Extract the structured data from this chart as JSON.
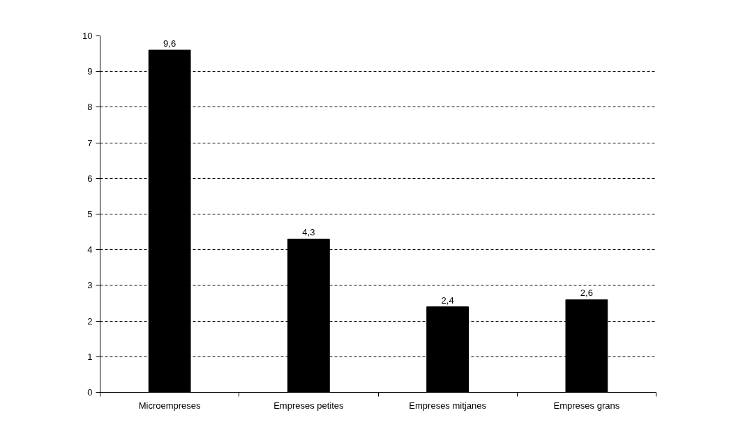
{
  "chart_data": {
    "type": "bar",
    "categories": [
      "Microempreses",
      "Empreses petites",
      "Empreses mitjanes",
      "Empreses grans"
    ],
    "values": [
      9.6,
      4.3,
      2.4,
      2.6
    ],
    "value_labels": [
      "9,6",
      "4,3",
      "2,4",
      "2,6"
    ],
    "color": "#000000",
    "ylim": [
      0,
      10
    ],
    "yticks": [
      0,
      1,
      2,
      3,
      4,
      5,
      6,
      7,
      8,
      9,
      10
    ],
    "grid": "y"
  }
}
